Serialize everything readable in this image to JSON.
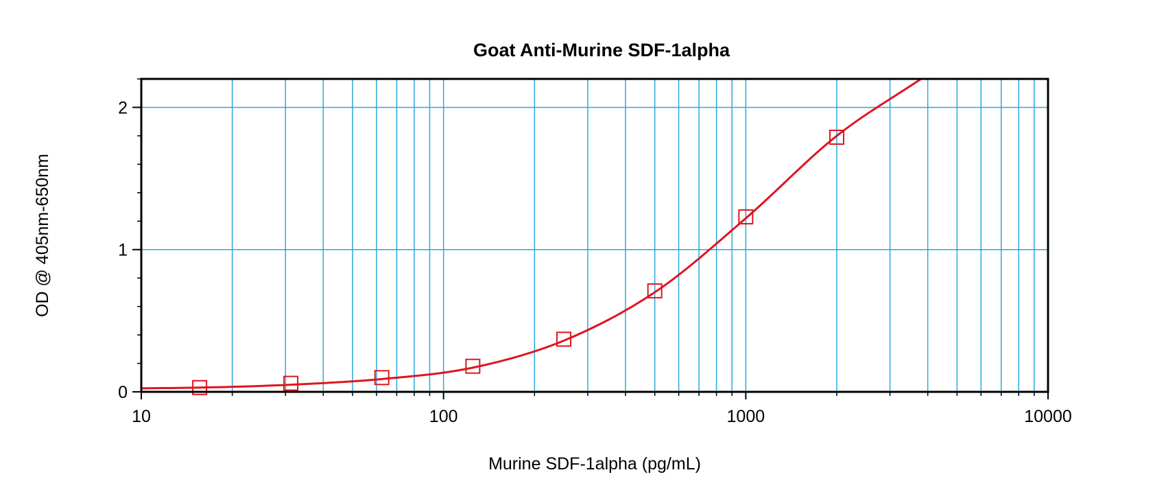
{
  "chart_data": {
    "type": "scatter",
    "title": "Goat Anti-Murine SDF-1alpha",
    "xlabel": "Murine SDF-1alpha (pg/mL)",
    "ylabel": "OD @ 405nm-650nm",
    "xscale": "log",
    "xlim": [
      10,
      10000
    ],
    "ylim": [
      0,
      2.2
    ],
    "x_ticks": [
      10,
      100,
      1000,
      10000
    ],
    "x_tick_labels": [
      "10",
      "100",
      "1000",
      "10000"
    ],
    "y_ticks": [
      0,
      1,
      2
    ],
    "y_tick_labels": [
      "0",
      "1",
      "2"
    ],
    "grid": true,
    "legend": "none",
    "series": [
      {
        "marker": "open-square",
        "color": "#e0141e",
        "x": [
          15.6,
          31.25,
          62.5,
          125,
          250,
          500,
          1000,
          2000
        ],
        "y": [
          0.03,
          0.06,
          0.1,
          0.18,
          0.37,
          0.71,
          1.23,
          1.79
        ]
      }
    ],
    "fit_line": {
      "color": "#e0141e",
      "x": [
        10,
        15.6,
        31.25,
        62.5,
        125,
        250,
        500,
        1000,
        2000,
        3800
      ],
      "y": [
        0.025,
        0.03,
        0.05,
        0.09,
        0.17,
        0.36,
        0.7,
        1.22,
        1.8,
        2.2
      ]
    },
    "colors": {
      "grid": "#29a8dc",
      "frame": "#000000",
      "data": "#e0141e"
    }
  }
}
